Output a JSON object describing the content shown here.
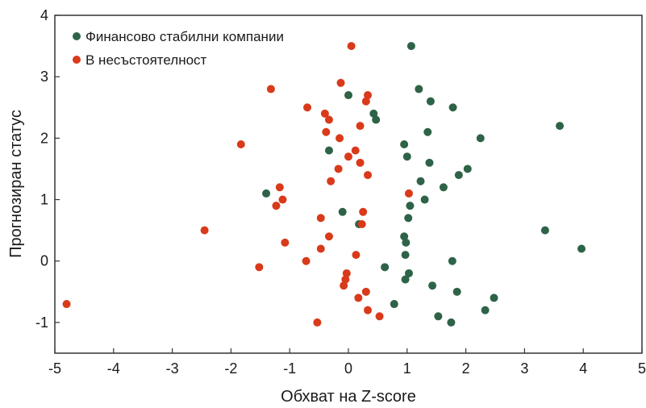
{
  "chart_data": {
    "type": "scatter",
    "xlabel": "Обхват на Z-score",
    "ylabel": "Прогнозиран статус",
    "xlim": [
      -5,
      5
    ],
    "ylim": [
      -1.5,
      4
    ],
    "xticks": [
      -5,
      -4,
      -3,
      -2,
      -1,
      0,
      1,
      2,
      3,
      4,
      5
    ],
    "yticks": [
      -1,
      0,
      1,
      2,
      3,
      4
    ],
    "xtick_labels": [
      "-5",
      "-4",
      "-3",
      "-2",
      "-1",
      "0",
      "1",
      "2",
      "3",
      "4",
      "5"
    ],
    "ytick_labels": [
      "-1",
      "0",
      "1",
      "2",
      "3",
      "4"
    ],
    "grid": false,
    "legend_position": "top-left",
    "series": [
      {
        "name": "Финансово стабилни компании",
        "color": "#2e6348",
        "points": [
          [
            1.07,
            3.5
          ],
          [
            1.2,
            2.8
          ],
          [
            0.0,
            2.7
          ],
          [
            1.4,
            2.6
          ],
          [
            1.78,
            2.5
          ],
          [
            0.43,
            2.4
          ],
          [
            0.47,
            2.3
          ],
          [
            3.6,
            2.2
          ],
          [
            1.35,
            2.1
          ],
          [
            2.25,
            2.0
          ],
          [
            0.95,
            1.9
          ],
          [
            -0.33,
            1.8
          ],
          [
            1.0,
            1.7
          ],
          [
            1.38,
            1.6
          ],
          [
            2.03,
            1.5
          ],
          [
            1.88,
            1.4
          ],
          [
            1.23,
            1.3
          ],
          [
            1.62,
            1.2
          ],
          [
            -1.4,
            1.1
          ],
          [
            1.3,
            1.0
          ],
          [
            1.05,
            0.9
          ],
          [
            -0.1,
            0.8
          ],
          [
            1.02,
            0.7
          ],
          [
            0.18,
            0.6
          ],
          [
            3.35,
            0.5
          ],
          [
            0.95,
            0.4
          ],
          [
            0.98,
            0.3
          ],
          [
            3.97,
            0.2
          ],
          [
            0.97,
            0.1
          ],
          [
            1.77,
            0.0
          ],
          [
            0.62,
            -0.1
          ],
          [
            1.03,
            -0.2
          ],
          [
            0.97,
            -0.3
          ],
          [
            1.43,
            -0.4
          ],
          [
            1.85,
            -0.5
          ],
          [
            2.48,
            -0.6
          ],
          [
            0.78,
            -0.7
          ],
          [
            2.33,
            -0.8
          ],
          [
            1.53,
            -0.9
          ],
          [
            1.75,
            -1.0
          ]
        ]
      },
      {
        "name": "В несъстоятелност",
        "color": "#d93a1a",
        "points": [
          [
            0.05,
            3.5
          ],
          [
            -0.13,
            2.9
          ],
          [
            -1.32,
            2.8
          ],
          [
            0.33,
            2.7
          ],
          [
            0.3,
            2.6
          ],
          [
            -0.7,
            2.5
          ],
          [
            -0.4,
            2.4
          ],
          [
            -0.33,
            2.3
          ],
          [
            0.2,
            2.2
          ],
          [
            -0.38,
            2.1
          ],
          [
            -0.15,
            2.0
          ],
          [
            -1.83,
            1.9
          ],
          [
            0.12,
            1.8
          ],
          [
            0.0,
            1.7
          ],
          [
            0.2,
            1.6
          ],
          [
            -0.17,
            1.5
          ],
          [
            0.33,
            1.4
          ],
          [
            -0.3,
            1.3
          ],
          [
            -1.17,
            1.2
          ],
          [
            1.03,
            1.1
          ],
          [
            -1.12,
            1.0
          ],
          [
            -1.23,
            0.9
          ],
          [
            0.25,
            0.8
          ],
          [
            -0.47,
            0.7
          ],
          [
            0.23,
            0.6
          ],
          [
            -2.45,
            0.5
          ],
          [
            -0.33,
            0.4
          ],
          [
            -1.08,
            0.3
          ],
          [
            -0.47,
            0.2
          ],
          [
            0.13,
            0.1
          ],
          [
            -0.72,
            0.0
          ],
          [
            -1.52,
            -0.1
          ],
          [
            -0.03,
            -0.2
          ],
          [
            -0.05,
            -0.3
          ],
          [
            -0.08,
            -0.4
          ],
          [
            0.3,
            -0.5
          ],
          [
            0.17,
            -0.6
          ],
          [
            -4.8,
            -0.7
          ],
          [
            0.33,
            -0.8
          ],
          [
            0.53,
            -0.9
          ],
          [
            -0.53,
            -1.0
          ]
        ]
      }
    ]
  }
}
